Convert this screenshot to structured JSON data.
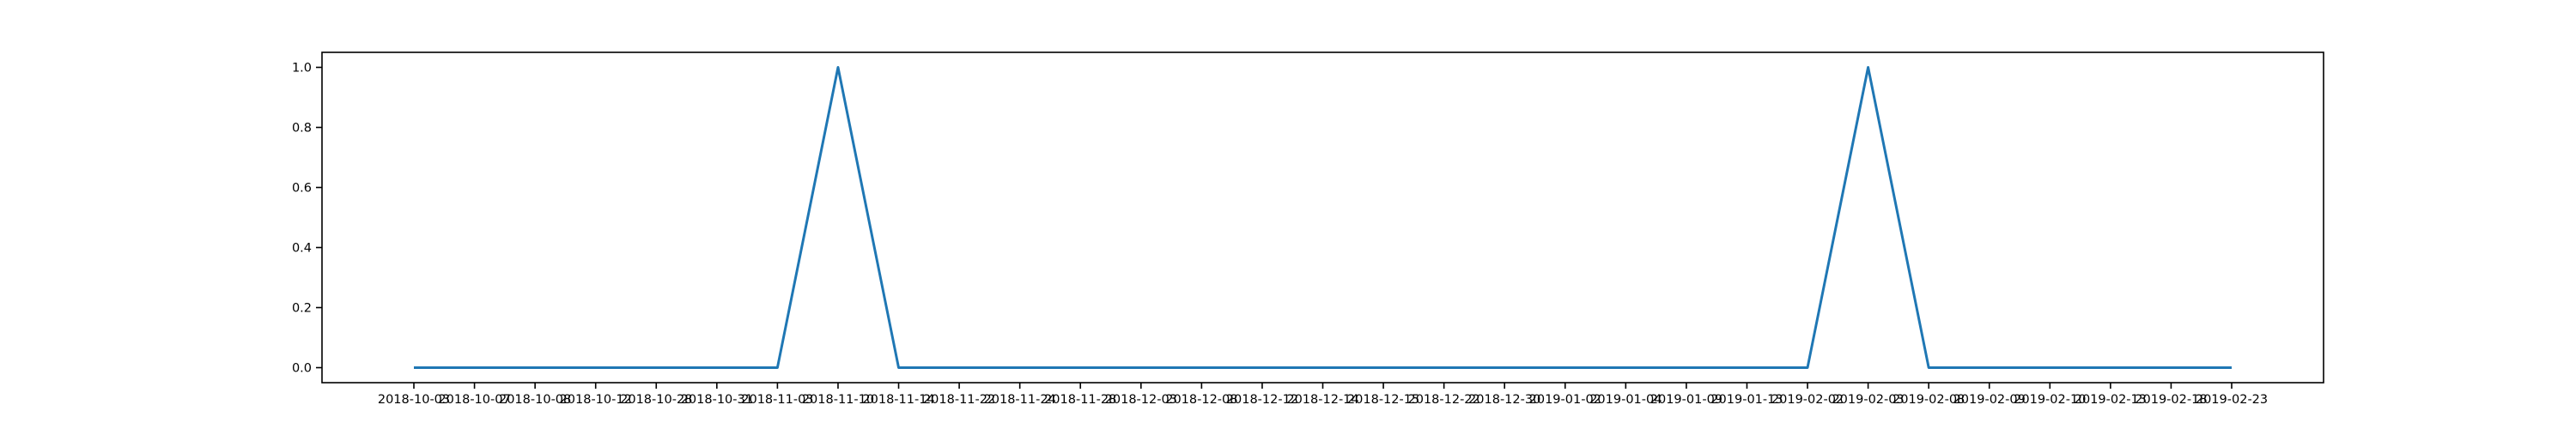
{
  "chart_data": {
    "type": "line",
    "title": "",
    "xlabel": "",
    "ylabel": "",
    "x": [
      "2018-10-03",
      "2018-10-07",
      "2018-10-08",
      "2018-10-12",
      "2018-10-28",
      "2018-10-31",
      "2018-11-03",
      "2018-11-10",
      "2018-11-14",
      "2018-11-22",
      "2018-11-24",
      "2018-11-28",
      "2018-12-03",
      "2018-12-08",
      "2018-12-12",
      "2018-12-14",
      "2018-12-15",
      "2018-12-22",
      "2018-12-30",
      "2019-01-02",
      "2019-01-04",
      "2019-01-09",
      "2019-01-13",
      "2019-02-02",
      "2019-02-03",
      "2019-02-08",
      "2019-02-09",
      "2019-02-10",
      "2019-02-13",
      "2019-02-18",
      "2019-02-23"
    ],
    "series": [
      {
        "values": [
          0,
          0,
          0,
          0,
          0,
          0,
          0,
          1,
          0,
          0,
          0,
          0,
          0,
          0,
          0,
          0,
          0,
          0,
          0,
          0,
          0,
          0,
          0,
          0,
          1,
          0,
          0,
          0,
          0,
          0,
          0
        ],
        "color": "#1f77b4"
      }
    ],
    "ylim": [
      -0.05,
      1.05
    ],
    "yticks": [
      "0.0",
      "0.2",
      "0.4",
      "0.6",
      "0.8",
      "1.0"
    ],
    "ytick_values": [
      0,
      0.2,
      0.4,
      0.6,
      0.8,
      1.0
    ],
    "grid": false,
    "legend": "none"
  }
}
